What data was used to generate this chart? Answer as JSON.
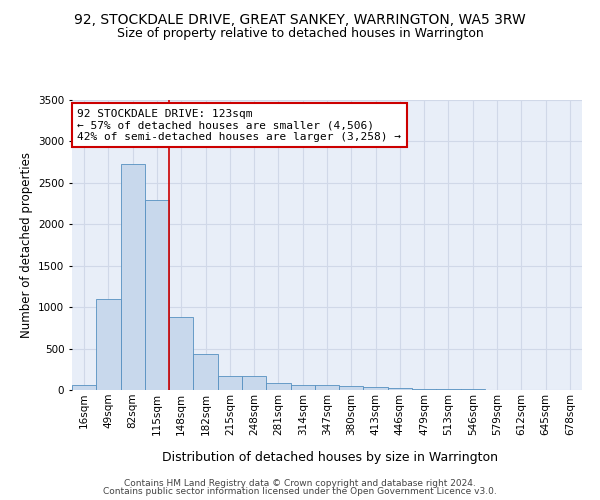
{
  "title": "92, STOCKDALE DRIVE, GREAT SANKEY, WARRINGTON, WA5 3RW",
  "subtitle": "Size of property relative to detached houses in Warrington",
  "xlabel": "Distribution of detached houses by size in Warrington",
  "ylabel": "Number of detached properties",
  "footer_line1": "Contains HM Land Registry data © Crown copyright and database right 2024.",
  "footer_line2": "Contains public sector information licensed under the Open Government Licence v3.0.",
  "categories": [
    "16sqm",
    "49sqm",
    "82sqm",
    "115sqm",
    "148sqm",
    "182sqm",
    "215sqm",
    "248sqm",
    "281sqm",
    "314sqm",
    "347sqm",
    "380sqm",
    "413sqm",
    "446sqm",
    "479sqm",
    "513sqm",
    "546sqm",
    "579sqm",
    "612sqm",
    "645sqm",
    "678sqm"
  ],
  "values": [
    60,
    1100,
    2730,
    2290,
    880,
    430,
    175,
    165,
    90,
    65,
    55,
    50,
    35,
    25,
    15,
    10,
    8,
    5,
    4,
    3,
    2
  ],
  "bar_color": "#c8d8ec",
  "bar_edge_color": "#5590c0",
  "bar_edge_width": 0.6,
  "red_line_color": "#cc0000",
  "annotation_line1": "92 STOCKDALE DRIVE: 123sqm",
  "annotation_line2": "← 57% of detached houses are smaller (4,506)",
  "annotation_line3": "42% of semi-detached houses are larger (3,258) →",
  "annotation_box_color": "#ffffff",
  "annotation_border_color": "#cc0000",
  "ylim": [
    0,
    3500
  ],
  "yticks": [
    0,
    500,
    1000,
    1500,
    2000,
    2500,
    3000,
    3500
  ],
  "background_color": "#e8eef8",
  "grid_color": "#d0d8e8",
  "title_fontsize": 10,
  "subtitle_fontsize": 9,
  "xlabel_fontsize": 9,
  "ylabel_fontsize": 8.5,
  "tick_fontsize": 7.5,
  "annotation_fontsize": 8,
  "footer_fontsize": 6.5
}
